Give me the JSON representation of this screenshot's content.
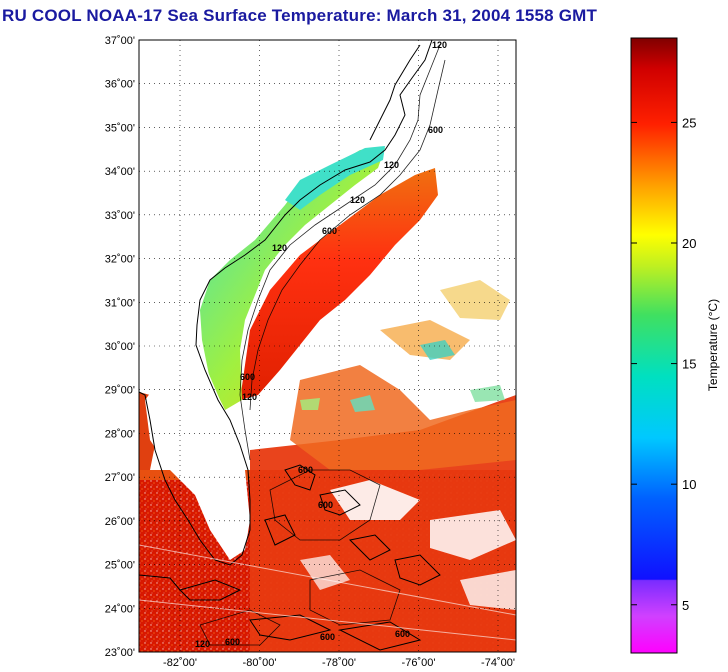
{
  "title": "RU COOL  NOAA-17  Sea Surface Temperature:  March 31, 2004 1558 GMT",
  "map": {
    "lat_labels": [
      "37˚00'",
      "36˚00'",
      "35˚00'",
      "34˚00'",
      "33˚00'",
      "32˚00'",
      "31˚00'",
      "30˚00'",
      "29˚00'",
      "28˚00'",
      "27˚00'",
      "26˚00'",
      "25˚00'",
      "24˚00'",
      "23˚00'"
    ],
    "lon_labels": [
      "-82˚00'",
      "-80˚00'",
      "-78˚00'",
      "-76˚00'",
      "-74˚00'"
    ],
    "contour_labels": [
      "120",
      "600",
      "120",
      "120",
      "600",
      "120",
      "600",
      "600",
      "120",
      "600",
      "600",
      "600",
      "120",
      "600"
    ]
  },
  "colorbar": {
    "label": "Temperature (°C)",
    "ticks": [
      "25",
      "20",
      "15",
      "10",
      "5"
    ],
    "tick_values": [
      25,
      20,
      15,
      10,
      5
    ],
    "range": [
      3,
      28.5
    ]
  }
}
